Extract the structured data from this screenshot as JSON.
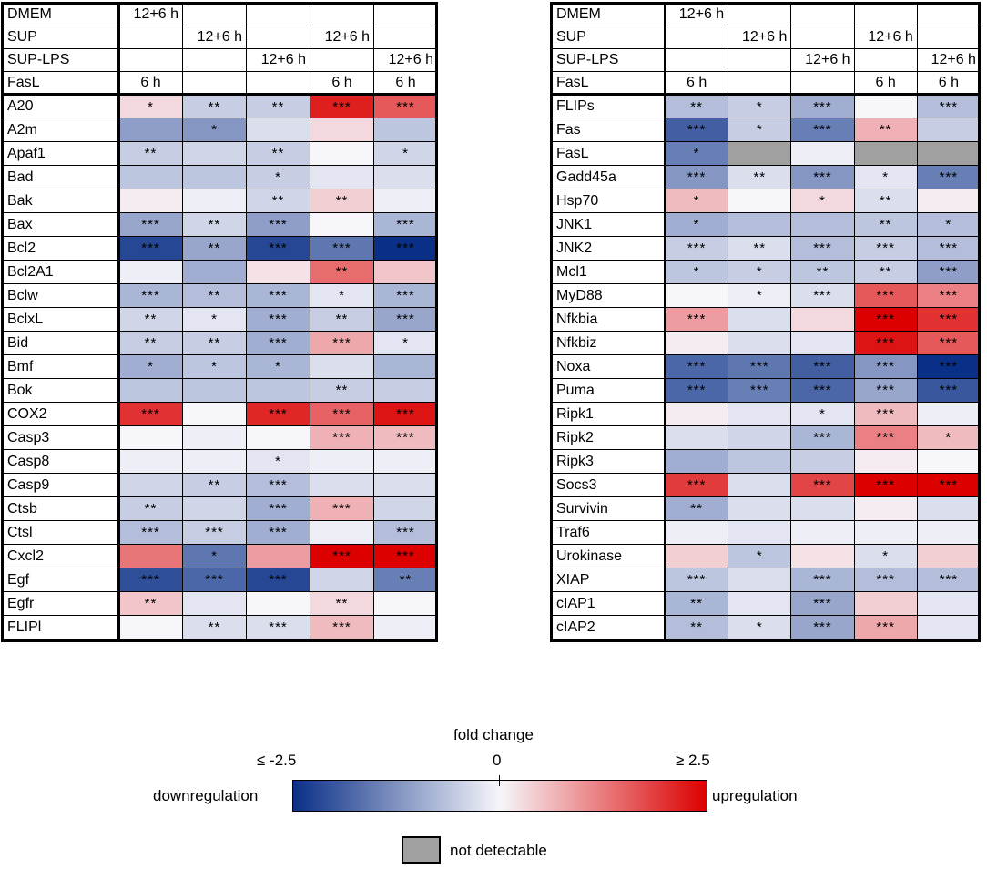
{
  "chart_data": {
    "type": "heatmap",
    "title": "",
    "colorscale": {
      "min": -2.5,
      "max": 2.5,
      "low_color": "#0a2f86",
      "mid_color": "#f6f6fb",
      "high_color": "#dc0000",
      "na_color": "#a0a0a0"
    },
    "condition_rows": [
      "DMEM",
      "SUP",
      "SUP-LPS",
      "FasL"
    ],
    "conditions": [
      {
        "DMEM": "12+6 h",
        "SUP": "",
        "SUP-LPS": "",
        "FasL": "6 h"
      },
      {
        "DMEM": "",
        "SUP": "12+6 h",
        "SUP-LPS": "",
        "FasL": ""
      },
      {
        "DMEM": "",
        "SUP": "",
        "SUP-LPS": "12+6 h",
        "FasL": ""
      },
      {
        "DMEM": "",
        "SUP": "12+6 h",
        "SUP-LPS": "",
        "FasL": "6 h"
      },
      {
        "DMEM": "",
        "SUP": "",
        "SUP-LPS": "12+6 h",
        "FasL": "6 h"
      }
    ],
    "panels": [
      {
        "genes": [
          {
            "name": "A20",
            "values": [
              0.3,
              -0.5,
              -0.5,
              2.2,
              1.6
            ],
            "sig": [
              "*",
              "**",
              "**",
              "***",
              "***"
            ]
          },
          {
            "name": "A2m",
            "values": [
              -1.1,
              -1.2,
              -0.3,
              0.3,
              -0.6
            ],
            "sig": [
              "",
              "*",
              "",
              "",
              ""
            ]
          },
          {
            "name": "Apaf1",
            "values": [
              -0.5,
              -0.4,
              -0.5,
              0.0,
              -0.4
            ],
            "sig": [
              "**",
              "",
              "**",
              "",
              "*"
            ]
          },
          {
            "name": "Bad",
            "values": [
              -0.6,
              -0.6,
              -0.5,
              -0.2,
              -0.3
            ],
            "sig": [
              "",
              "",
              "*",
              "",
              ""
            ]
          },
          {
            "name": "Bak",
            "values": [
              0.1,
              -0.1,
              -0.4,
              0.4,
              -0.1
            ],
            "sig": [
              "",
              "",
              "**",
              "**",
              ""
            ]
          },
          {
            "name": "Bax",
            "values": [
              -1.0,
              -0.4,
              -1.1,
              0.0,
              -0.8
            ],
            "sig": [
              "***",
              "**",
              "***",
              "",
              "***"
            ]
          },
          {
            "name": "Bcl2",
            "values": [
              -2.2,
              -1.0,
              -2.2,
              -1.6,
              -2.5
            ],
            "sig": [
              "***",
              "**",
              "***",
              "***",
              "***"
            ]
          },
          {
            "name": "Bcl2A1",
            "values": [
              -0.1,
              -0.9,
              0.2,
              1.4,
              0.5
            ],
            "sig": [
              "",
              "",
              "",
              "**",
              ""
            ]
          },
          {
            "name": "Bclw",
            "values": [
              -0.8,
              -0.7,
              -0.8,
              -0.2,
              -0.8
            ],
            "sig": [
              "***",
              "**",
              "***",
              "*",
              "***"
            ]
          },
          {
            "name": "BclxL",
            "values": [
              -0.4,
              -0.2,
              -0.9,
              -0.5,
              -1.0
            ],
            "sig": [
              "**",
              "*",
              "***",
              "**",
              "***"
            ]
          },
          {
            "name": "Bid",
            "values": [
              -0.5,
              -0.5,
              -0.9,
              0.8,
              -0.2
            ],
            "sig": [
              "**",
              "**",
              "***",
              "***",
              "*"
            ]
          },
          {
            "name": "Bmf",
            "values": [
              -0.9,
              -0.6,
              -0.8,
              -0.3,
              -0.8
            ],
            "sig": [
              "*",
              "*",
              "*",
              "",
              ""
            ]
          },
          {
            "name": "Bok",
            "values": [
              -0.6,
              -0.6,
              -0.6,
              -0.5,
              -0.5
            ],
            "sig": [
              "",
              "",
              "",
              "**",
              ""
            ]
          },
          {
            "name": "COX2",
            "values": [
              2.0,
              0.0,
              2.1,
              1.5,
              2.3
            ],
            "sig": [
              "***",
              "",
              "***",
              "***",
              "***"
            ]
          },
          {
            "name": "Casp3",
            "values": [
              0.0,
              -0.1,
              0.0,
              0.7,
              0.6
            ],
            "sig": [
              "",
              "",
              "",
              "***",
              "***"
            ]
          },
          {
            "name": "Casp8",
            "values": [
              -0.1,
              -0.1,
              -0.2,
              -0.1,
              -0.1
            ],
            "sig": [
              "",
              "",
              "*",
              "",
              ""
            ]
          },
          {
            "name": "Casp9",
            "values": [
              -0.4,
              -0.5,
              -0.7,
              -0.3,
              -0.3
            ],
            "sig": [
              "",
              "**",
              "***",
              "",
              ""
            ]
          },
          {
            "name": "Ctsb",
            "values": [
              -0.5,
              -0.4,
              -0.9,
              0.7,
              -0.4
            ],
            "sig": [
              "**",
              "",
              "***",
              "***",
              ""
            ]
          },
          {
            "name": "Ctsl",
            "values": [
              -0.7,
              -0.5,
              -0.9,
              -0.1,
              -0.7
            ],
            "sig": [
              "***",
              "***",
              "***",
              "",
              "***"
            ]
          },
          {
            "name": "Cxcl2",
            "values": [
              1.3,
              -1.6,
              0.9,
              2.5,
              2.5
            ],
            "sig": [
              "",
              "*",
              "",
              "***",
              "***"
            ]
          },
          {
            "name": "Egf",
            "values": [
              -2.1,
              -1.8,
              -2.2,
              -0.4,
              -1.5
            ],
            "sig": [
              "***",
              "***",
              "***",
              "",
              "**"
            ]
          },
          {
            "name": "Egfr",
            "values": [
              0.5,
              -0.2,
              0.0,
              0.3,
              0.0
            ],
            "sig": [
              "**",
              "",
              "",
              "**",
              ""
            ]
          },
          {
            "name": "FLIPl",
            "values": [
              0.0,
              -0.3,
              -0.3,
              0.6,
              -0.1
            ],
            "sig": [
              "",
              "**",
              "***",
              "***",
              ""
            ]
          }
        ]
      },
      {
        "genes": [
          {
            "name": "FLIPs",
            "values": [
              -0.7,
              -0.5,
              -0.9,
              0.0,
              -0.7
            ],
            "sig": [
              "**",
              "*",
              "***",
              "",
              "***"
            ]
          },
          {
            "name": "Fas",
            "values": [
              -1.9,
              -0.5,
              -1.5,
              0.7,
              -0.5
            ],
            "sig": [
              "***",
              "*",
              "***",
              "**",
              ""
            ]
          },
          {
            "name": "FasL",
            "values": [
              -1.5,
              null,
              -0.1,
              null,
              null
            ],
            "sig": [
              "*",
              "",
              "",
              "",
              ""
            ]
          },
          {
            "name": "Gadd45a",
            "values": [
              -1.2,
              -0.3,
              -1.2,
              -0.2,
              -1.5
            ],
            "sig": [
              "***",
              "**",
              "***",
              "*",
              "***"
            ]
          },
          {
            "name": "Hsp70",
            "values": [
              0.6,
              0.0,
              0.3,
              -0.3,
              0.1
            ],
            "sig": [
              "*",
              "",
              "*",
              "**",
              ""
            ]
          },
          {
            "name": "JNK1",
            "values": [
              -0.9,
              -0.7,
              -0.7,
              -0.6,
              -0.7
            ],
            "sig": [
              "*",
              "",
              "",
              "**",
              "*"
            ]
          },
          {
            "name": "JNK2",
            "values": [
              -0.5,
              -0.3,
              -0.7,
              -0.5,
              -0.7
            ],
            "sig": [
              "***",
              "**",
              "***",
              "***",
              "***"
            ]
          },
          {
            "name": "Mcl1",
            "values": [
              -0.6,
              -0.5,
              -0.6,
              -0.5,
              -1.1
            ],
            "sig": [
              "*",
              "*",
              "**",
              "**",
              "***"
            ]
          },
          {
            "name": "MyD88",
            "values": [
              0.0,
              -0.1,
              -0.3,
              1.6,
              1.2
            ],
            "sig": [
              "",
              "*",
              "***",
              "***",
              "***"
            ]
          },
          {
            "name": "Nfkbia",
            "values": [
              0.9,
              -0.3,
              0.3,
              2.5,
              2.0
            ],
            "sig": [
              "***",
              "",
              "",
              "***",
              "***"
            ]
          },
          {
            "name": "Nfkbiz",
            "values": [
              0.1,
              -0.3,
              -0.2,
              2.3,
              1.6
            ],
            "sig": [
              "",
              "",
              "",
              "***",
              "***"
            ]
          },
          {
            "name": "Noxa",
            "values": [
              -1.8,
              -1.6,
              -1.9,
              -1.2,
              -2.5
            ],
            "sig": [
              "***",
              "***",
              "***",
              "***",
              "***"
            ]
          },
          {
            "name": "Puma",
            "values": [
              -1.8,
              -1.5,
              -1.8,
              -1.0,
              -2.0
            ],
            "sig": [
              "***",
              "***",
              "***",
              "***",
              "***"
            ]
          },
          {
            "name": "Ripk1",
            "values": [
              0.1,
              -0.2,
              -0.2,
              0.6,
              -0.1
            ],
            "sig": [
              "",
              "",
              "*",
              "***",
              ""
            ]
          },
          {
            "name": "Ripk2",
            "values": [
              -0.3,
              -0.4,
              -0.8,
              1.2,
              0.6
            ],
            "sig": [
              "",
              "",
              "***",
              "***",
              "*"
            ]
          },
          {
            "name": "Ripk3",
            "values": [
              -0.9,
              -0.6,
              -0.5,
              0.1,
              0.0
            ],
            "sig": [
              "",
              "",
              "",
              "",
              ""
            ]
          },
          {
            "name": "Socs3",
            "values": [
              1.9,
              -0.3,
              1.8,
              2.5,
              2.5
            ],
            "sig": [
              "***",
              "",
              "***",
              "***",
              "***"
            ]
          },
          {
            "name": "Survivin",
            "values": [
              -0.9,
              -0.3,
              -0.3,
              0.1,
              -0.3
            ],
            "sig": [
              "**",
              "",
              "",
              "",
              ""
            ]
          },
          {
            "name": "Traf6",
            "values": [
              -0.1,
              -0.2,
              -0.1,
              -0.1,
              -0.1
            ],
            "sig": [
              "",
              "",
              "",
              "",
              ""
            ]
          },
          {
            "name": "Urokinase",
            "values": [
              0.4,
              -0.6,
              0.2,
              -0.3,
              0.4
            ],
            "sig": [
              "",
              "*",
              "",
              "*",
              ""
            ]
          },
          {
            "name": "XIAP",
            "values": [
              -0.6,
              -0.3,
              -0.8,
              -0.7,
              -0.7
            ],
            "sig": [
              "***",
              "",
              "***",
              "***",
              "***"
            ]
          },
          {
            "name": "cIAP1",
            "values": [
              -0.8,
              -0.2,
              -1.0,
              0.4,
              -0.2
            ],
            "sig": [
              "**",
              "",
              "***",
              "",
              ""
            ]
          },
          {
            "name": "cIAP2",
            "values": [
              -0.7,
              -0.3,
              -1.0,
              0.8,
              -0.2
            ],
            "sig": [
              "**",
              "*",
              "***",
              "***",
              ""
            ]
          }
        ]
      }
    ],
    "legend": {
      "title": "fold change",
      "min_label": "≤ -2.5",
      "mid_label": "0",
      "max_label": "≥ 2.5",
      "left_label": "downregulation",
      "right_label": "upregulation",
      "na_label": "not detectable"
    }
  }
}
